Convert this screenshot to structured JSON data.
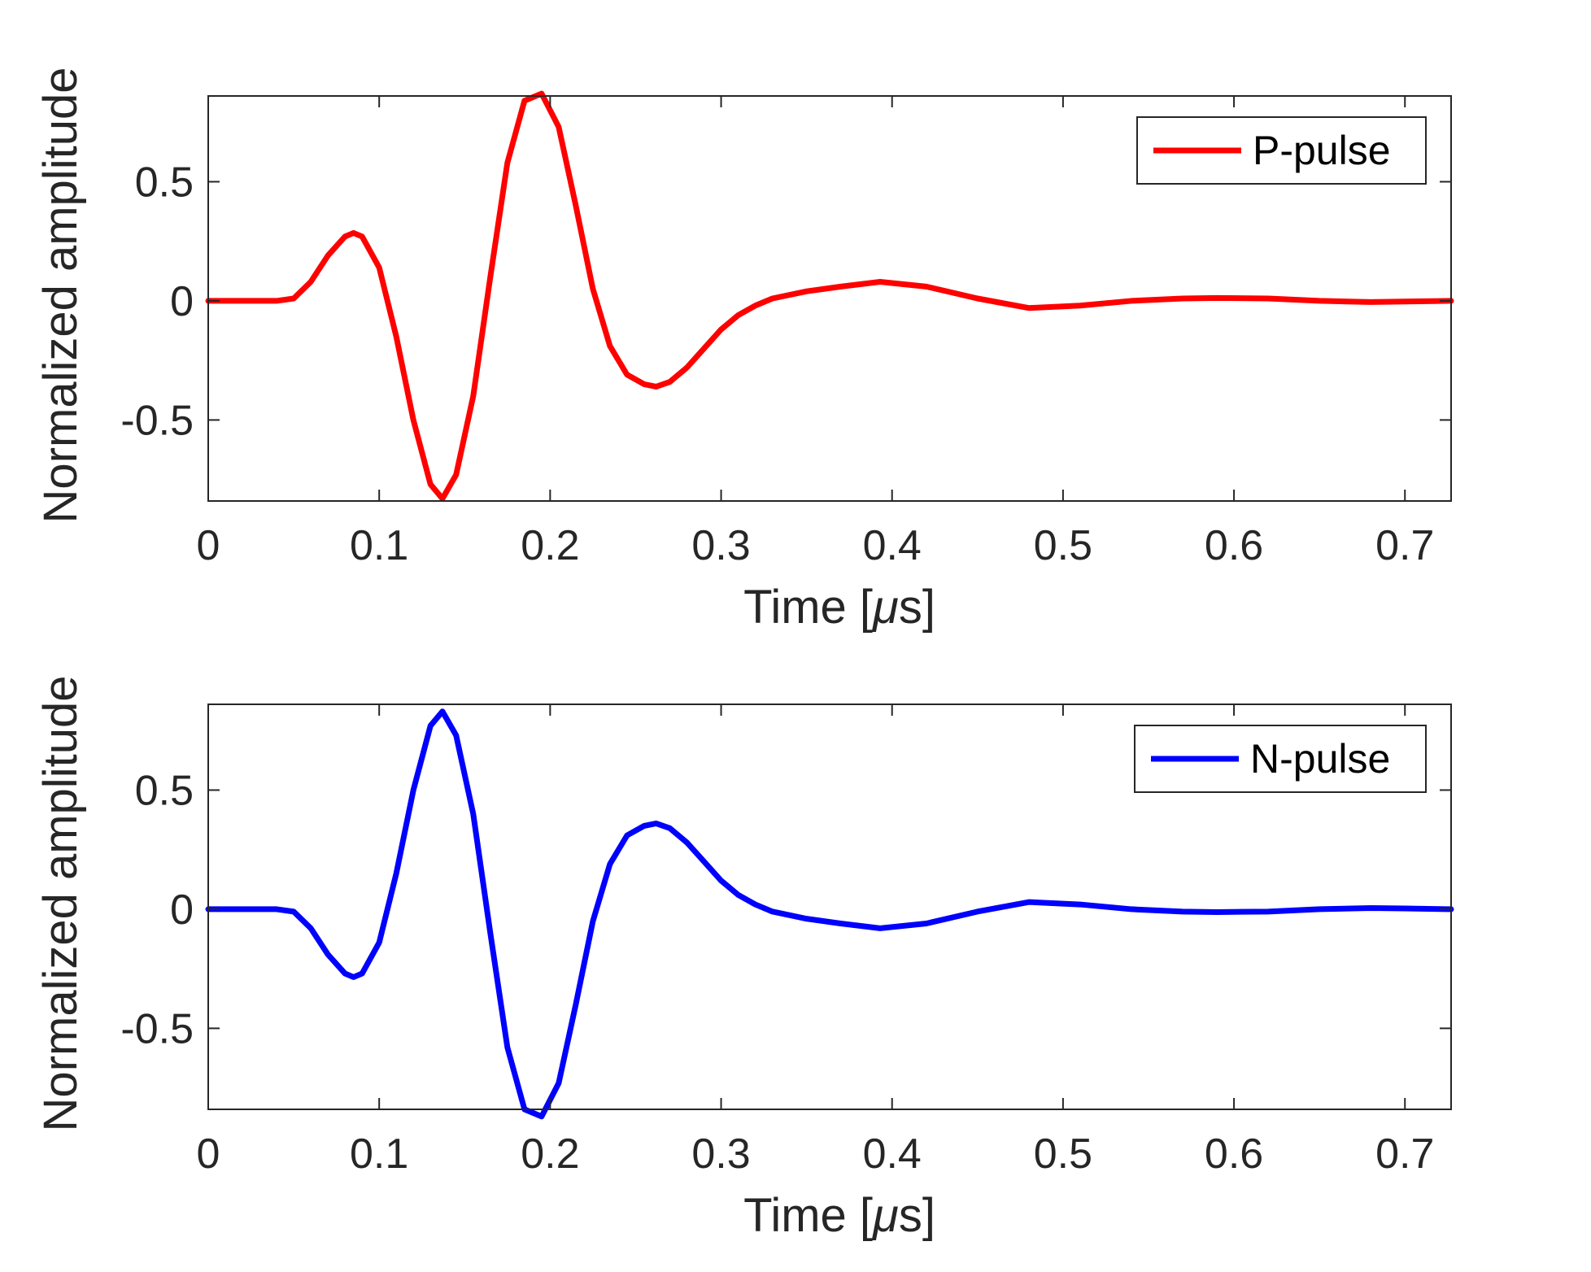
{
  "chart_data": [
    {
      "type": "line",
      "xlabel_prefix": "Time [",
      "xlabel_mu": "μ",
      "xlabel_suffix": "s]",
      "ylabel": "Normalized amplitude",
      "xlim": [
        0,
        0.727
      ],
      "ylim": [
        -0.84,
        0.86
      ],
      "xticks": [
        0,
        0.1,
        0.2,
        0.3,
        0.4,
        0.5,
        0.6,
        0.7
      ],
      "xtick_labels": [
        "0",
        "0.1",
        "0.2",
        "0.3",
        "0.4",
        "0.5",
        "0.6",
        "0.7"
      ],
      "yticks": [
        -0.5,
        0,
        0.5
      ],
      "ytick_labels": [
        "-0.5",
        "0",
        "0.5"
      ],
      "grid": false,
      "legend_position": "top-right",
      "series": [
        {
          "name": "P-pulse",
          "color": "#ff0000",
          "x": [
            0,
            0.04,
            0.05,
            0.06,
            0.07,
            0.08,
            0.085,
            0.09,
            0.1,
            0.11,
            0.12,
            0.13,
            0.137,
            0.145,
            0.155,
            0.165,
            0.175,
            0.185,
            0.195,
            0.205,
            0.215,
            0.225,
            0.235,
            0.245,
            0.255,
            0.262,
            0.27,
            0.28,
            0.29,
            0.3,
            0.31,
            0.32,
            0.33,
            0.35,
            0.37,
            0.393,
            0.42,
            0.45,
            0.48,
            0.51,
            0.54,
            0.57,
            0.59,
            0.62,
            0.65,
            0.68,
            0.7,
            0.727
          ],
          "y": [
            0,
            0,
            0.01,
            0.08,
            0.19,
            0.27,
            0.285,
            0.27,
            0.14,
            -0.15,
            -0.5,
            -0.77,
            -0.83,
            -0.73,
            -0.4,
            0.1,
            0.58,
            0.84,
            0.87,
            0.73,
            0.4,
            0.05,
            -0.19,
            -0.31,
            -0.35,
            -0.36,
            -0.34,
            -0.28,
            -0.2,
            -0.12,
            -0.06,
            -0.02,
            0.01,
            0.04,
            0.06,
            0.08,
            0.06,
            0.01,
            -0.03,
            -0.02,
            0.0,
            0.01,
            0.012,
            0.01,
            0.0,
            -0.005,
            -0.003,
            0.0
          ]
        },
        {
          "name": "N-pulse",
          "color": "#0000ff",
          "x": [
            0,
            0.04,
            0.05,
            0.06,
            0.07,
            0.08,
            0.085,
            0.09,
            0.1,
            0.11,
            0.12,
            0.13,
            0.137,
            0.145,
            0.155,
            0.165,
            0.175,
            0.185,
            0.195,
            0.205,
            0.215,
            0.225,
            0.235,
            0.245,
            0.255,
            0.262,
            0.27,
            0.28,
            0.29,
            0.3,
            0.31,
            0.32,
            0.33,
            0.35,
            0.37,
            0.393,
            0.42,
            0.45,
            0.48,
            0.51,
            0.54,
            0.57,
            0.59,
            0.62,
            0.65,
            0.68,
            0.7,
            0.727
          ],
          "y": [
            0,
            0,
            -0.01,
            -0.08,
            -0.19,
            -0.27,
            -0.285,
            -0.27,
            -0.14,
            0.15,
            0.5,
            0.77,
            0.83,
            0.73,
            0.4,
            -0.1,
            -0.58,
            -0.84,
            -0.87,
            -0.73,
            -0.4,
            -0.05,
            0.19,
            0.31,
            0.35,
            0.36,
            0.34,
            0.28,
            0.2,
            0.12,
            0.06,
            0.02,
            -0.01,
            -0.04,
            -0.06,
            -0.08,
            -0.06,
            -0.01,
            0.03,
            0.02,
            0.0,
            -0.01,
            -0.012,
            -0.01,
            0.0,
            0.005,
            0.003,
            0.0
          ]
        }
      ]
    }
  ]
}
